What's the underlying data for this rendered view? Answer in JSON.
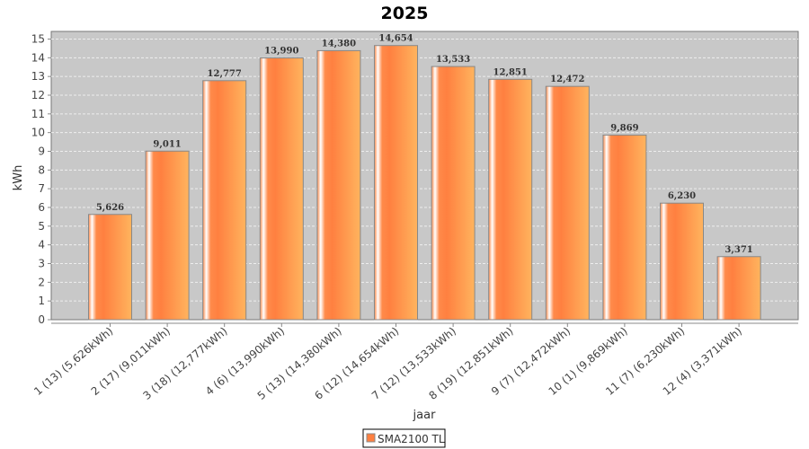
{
  "chart_data": {
    "type": "bar",
    "title": "2025",
    "xlabel": "jaar",
    "ylabel": "kWh",
    "ylim": [
      0,
      15
    ],
    "yticks": [
      0,
      1,
      2,
      3,
      4,
      5,
      6,
      7,
      8,
      9,
      10,
      11,
      12,
      13,
      14,
      15
    ],
    "grid": true,
    "legend_position": "bottom",
    "categories": [
      "1 (13)  (5,626kWh)",
      "2 (17)  (9,011kWh)",
      "3 (18)  (12,777kWh)",
      "4 (6)  (13,990kWh)",
      "5 (13)  (14,380kWh)",
      "6 (12)  (14,654kWh)",
      "7 (12)  (13,533kWh)",
      "8 (19)  (12,851kWh)",
      "9 (7)  (12,472kWh)",
      "10 (1)  (9,869kWh)",
      "11 (7)  (6,230kWh)",
      "12 (4)  (3,371kWh)"
    ],
    "series": [
      {
        "name": "SMA2100 TL",
        "color": "#ff8040",
        "values": [
          5.626,
          9.011,
          12.777,
          13.99,
          14.38,
          14.654,
          13.533,
          12.851,
          12.472,
          9.869,
          6.23,
          3.371
        ],
        "labels": [
          "5,626",
          "9,011",
          "12,777",
          "13,990",
          "14,380",
          "14,654",
          "13,533",
          "12,851",
          "12,472",
          "9,869",
          "6,230",
          "3,371"
        ]
      }
    ]
  }
}
